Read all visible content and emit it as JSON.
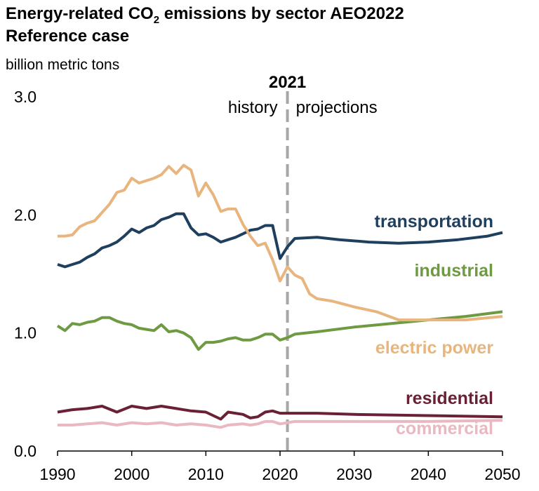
{
  "title_prefix": "Energy-related CO",
  "title_sub": "2",
  "title_suffix": " emissions by sector AEO2022",
  "subtitle": "Reference case",
  "unit": "billion metric tons",
  "marker": {
    "year": "2021",
    "left": "history",
    "right": "projections"
  },
  "colors": {
    "transportation": "#1f3f5f",
    "industrial": "#6e9a42",
    "electric_power": "#e8b57e",
    "residential": "#6b2135",
    "commercial": "#e9b8c0",
    "divider": "#a6a6a6"
  },
  "chart_data": {
    "type": "line",
    "title": "Energy-related CO2 emissions by sector AEO2022 Reference case",
    "ylabel": "billion metric tons",
    "xlim": [
      1990,
      2050
    ],
    "ylim": [
      0,
      3
    ],
    "x_ticks": [
      "1990",
      "2000",
      "2010",
      "2020",
      "2030",
      "2040",
      "2050"
    ],
    "y_ticks": [
      "0.0",
      "1.0",
      "2.0",
      "3.0"
    ],
    "divider_year": 2021,
    "series": [
      {
        "key": "transportation",
        "name": "transportation",
        "points": [
          [
            1990,
            1.58
          ],
          [
            1991,
            1.56
          ],
          [
            1992,
            1.58
          ],
          [
            1993,
            1.6
          ],
          [
            1994,
            1.64
          ],
          [
            1995,
            1.67
          ],
          [
            1996,
            1.72
          ],
          [
            1997,
            1.74
          ],
          [
            1998,
            1.77
          ],
          [
            1999,
            1.82
          ],
          [
            2000,
            1.88
          ],
          [
            2001,
            1.85
          ],
          [
            2002,
            1.89
          ],
          [
            2003,
            1.91
          ],
          [
            2004,
            1.96
          ],
          [
            2005,
            1.98
          ],
          [
            2006,
            2.01
          ],
          [
            2007,
            2.01
          ],
          [
            2008,
            1.89
          ],
          [
            2009,
            1.83
          ],
          [
            2010,
            1.84
          ],
          [
            2011,
            1.81
          ],
          [
            2012,
            1.77
          ],
          [
            2013,
            1.79
          ],
          [
            2014,
            1.81
          ],
          [
            2015,
            1.84
          ],
          [
            2016,
            1.87
          ],
          [
            2017,
            1.88
          ],
          [
            2018,
            1.91
          ],
          [
            2019,
            1.91
          ],
          [
            2020,
            1.63
          ],
          [
            2021,
            1.73
          ],
          [
            2022,
            1.8
          ],
          [
            2025,
            1.81
          ],
          [
            2028,
            1.79
          ],
          [
            2032,
            1.77
          ],
          [
            2036,
            1.76
          ],
          [
            2040,
            1.77
          ],
          [
            2044,
            1.79
          ],
          [
            2048,
            1.82
          ],
          [
            2050,
            1.85
          ]
        ]
      },
      {
        "key": "industrial",
        "name": "industrial",
        "points": [
          [
            1990,
            1.06
          ],
          [
            1991,
            1.02
          ],
          [
            1992,
            1.08
          ],
          [
            1993,
            1.07
          ],
          [
            1994,
            1.09
          ],
          [
            1995,
            1.1
          ],
          [
            1996,
            1.13
          ],
          [
            1997,
            1.13
          ],
          [
            1998,
            1.1
          ],
          [
            1999,
            1.08
          ],
          [
            2000,
            1.07
          ],
          [
            2001,
            1.04
          ],
          [
            2002,
            1.03
          ],
          [
            2003,
            1.02
          ],
          [
            2004,
            1.07
          ],
          [
            2005,
            1.01
          ],
          [
            2006,
            1.02
          ],
          [
            2007,
            1.0
          ],
          [
            2008,
            0.96
          ],
          [
            2009,
            0.86
          ],
          [
            2010,
            0.92
          ],
          [
            2011,
            0.92
          ],
          [
            2012,
            0.93
          ],
          [
            2013,
            0.95
          ],
          [
            2014,
            0.96
          ],
          [
            2015,
            0.94
          ],
          [
            2016,
            0.94
          ],
          [
            2017,
            0.96
          ],
          [
            2018,
            0.99
          ],
          [
            2019,
            0.99
          ],
          [
            2020,
            0.94
          ],
          [
            2021,
            0.96
          ],
          [
            2022,
            0.99
          ],
          [
            2025,
            1.01
          ],
          [
            2030,
            1.05
          ],
          [
            2035,
            1.08
          ],
          [
            2040,
            1.11
          ],
          [
            2045,
            1.14
          ],
          [
            2050,
            1.18
          ]
        ]
      },
      {
        "key": "electric_power",
        "name": "electric power",
        "points": [
          [
            1990,
            1.82
          ],
          [
            1991,
            1.82
          ],
          [
            1992,
            1.83
          ],
          [
            1993,
            1.9
          ],
          [
            1994,
            1.93
          ],
          [
            1995,
            1.95
          ],
          [
            1996,
            2.02
          ],
          [
            1997,
            2.09
          ],
          [
            1998,
            2.19
          ],
          [
            1999,
            2.21
          ],
          [
            2000,
            2.31
          ],
          [
            2001,
            2.27
          ],
          [
            2002,
            2.29
          ],
          [
            2003,
            2.31
          ],
          [
            2004,
            2.34
          ],
          [
            2005,
            2.41
          ],
          [
            2006,
            2.35
          ],
          [
            2007,
            2.42
          ],
          [
            2008,
            2.38
          ],
          [
            2009,
            2.16
          ],
          [
            2010,
            2.27
          ],
          [
            2011,
            2.17
          ],
          [
            2012,
            2.03
          ],
          [
            2013,
            2.05
          ],
          [
            2014,
            2.05
          ],
          [
            2015,
            1.92
          ],
          [
            2016,
            1.82
          ],
          [
            2017,
            1.74
          ],
          [
            2018,
            1.76
          ],
          [
            2019,
            1.62
          ],
          [
            2020,
            1.44
          ],
          [
            2021,
            1.56
          ],
          [
            2022,
            1.49
          ],
          [
            2023,
            1.46
          ],
          [
            2024,
            1.33
          ],
          [
            2025,
            1.29
          ],
          [
            2027,
            1.27
          ],
          [
            2030,
            1.22
          ],
          [
            2033,
            1.18
          ],
          [
            2036,
            1.11
          ],
          [
            2040,
            1.11
          ],
          [
            2045,
            1.11
          ],
          [
            2050,
            1.14
          ]
        ]
      },
      {
        "key": "residential",
        "name": "residential",
        "points": [
          [
            1990,
            0.33
          ],
          [
            1992,
            0.35
          ],
          [
            1994,
            0.36
          ],
          [
            1996,
            0.38
          ],
          [
            1998,
            0.33
          ],
          [
            2000,
            0.38
          ],
          [
            2002,
            0.36
          ],
          [
            2004,
            0.38
          ],
          [
            2006,
            0.36
          ],
          [
            2008,
            0.34
          ],
          [
            2010,
            0.33
          ],
          [
            2012,
            0.27
          ],
          [
            2013,
            0.33
          ],
          [
            2015,
            0.31
          ],
          [
            2016,
            0.28
          ],
          [
            2017,
            0.29
          ],
          [
            2018,
            0.33
          ],
          [
            2019,
            0.34
          ],
          [
            2020,
            0.32
          ],
          [
            2025,
            0.32
          ],
          [
            2030,
            0.31
          ],
          [
            2040,
            0.3
          ],
          [
            2050,
            0.29
          ]
        ]
      },
      {
        "key": "commercial",
        "name": "commercial",
        "points": [
          [
            1990,
            0.22
          ],
          [
            1992,
            0.22
          ],
          [
            1994,
            0.23
          ],
          [
            1996,
            0.24
          ],
          [
            1998,
            0.22
          ],
          [
            2000,
            0.24
          ],
          [
            2002,
            0.23
          ],
          [
            2004,
            0.24
          ],
          [
            2006,
            0.22
          ],
          [
            2008,
            0.23
          ],
          [
            2010,
            0.22
          ],
          [
            2012,
            0.2
          ],
          [
            2013,
            0.22
          ],
          [
            2015,
            0.23
          ],
          [
            2016,
            0.22
          ],
          [
            2017,
            0.23
          ],
          [
            2018,
            0.25
          ],
          [
            2019,
            0.25
          ],
          [
            2020,
            0.23
          ],
          [
            2022,
            0.25
          ],
          [
            2030,
            0.25
          ],
          [
            2040,
            0.25
          ],
          [
            2050,
            0.26
          ]
        ]
      }
    ]
  }
}
